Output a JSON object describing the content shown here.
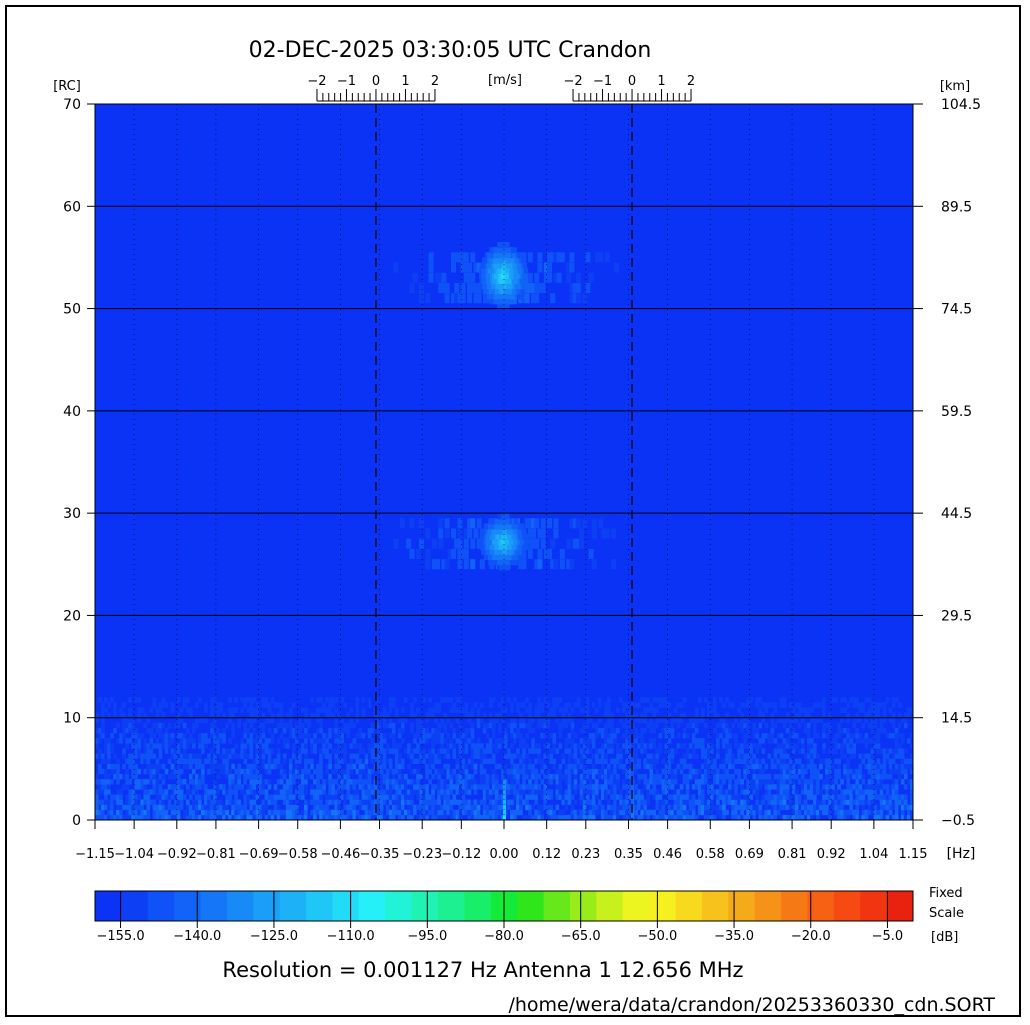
{
  "chart_data": {
    "type": "heatmap",
    "title": "02-DEC-2025 03:30:05 UTC   Crandon",
    "left_axis": {
      "unit_label": "[RC]",
      "ticks": [
        "70",
        "60",
        "50",
        "40",
        "30",
        "20",
        "10",
        "0"
      ],
      "range": [
        0,
        70
      ]
    },
    "right_axis": {
      "unit_label": "[km]",
      "ticks": [
        "104.5",
        "89.5",
        "74.5",
        "59.5",
        "44.5",
        "29.5",
        "14.5",
        "-0.5"
      ],
      "range": [
        -0.5,
        104.5
      ]
    },
    "x_axis": {
      "unit_label": "[Hz]",
      "ticks": [
        "-1.15",
        "-1.04",
        "-0.92",
        "-0.81",
        "-0.69",
        "-0.58",
        "-0.46",
        "-0.35",
        "-0.23",
        "-0.12",
        "0.00",
        "0.12",
        "0.23",
        "0.35",
        "0.46",
        "0.58",
        "0.69",
        "0.81",
        "0.92",
        "1.04",
        "1.15"
      ],
      "range": [
        -1.15,
        1.15
      ]
    },
    "velocity_scales": {
      "unit_label": "[m/s]",
      "ticks": [
        "-2",
        "-1",
        "0",
        "1",
        "2"
      ],
      "centers_hz": [
        -0.36,
        0.36
      ]
    },
    "grid": true,
    "colorbar": {
      "ticks": [
        "-155.0",
        "-140.0",
        "-125.0",
        "-110.0",
        "-95.0",
        "-80.0",
        "-65.0",
        "-50.0",
        "-35.0",
        "-20.0",
        "-5.0"
      ],
      "range_db": [
        -160,
        0
      ],
      "label_lines": [
        "Fixed",
        "Scale",
        "[dB]"
      ],
      "colors": [
        "#0b33f5",
        "#0d40f5",
        "#0f52f7",
        "#1263f7",
        "#1577f7",
        "#188af7",
        "#1a9ef7",
        "#1db2f7",
        "#1fc7f7",
        "#22dbf7",
        "#25f0f7",
        "#22f2d6",
        "#20f2b4",
        "#1df091",
        "#19ee6a",
        "#14ea3a",
        "#2ee61a",
        "#66e81a",
        "#99ec1a",
        "#c8f01c",
        "#ecf51f",
        "#f7f020",
        "#f7da1e",
        "#f7c21c",
        "#f5aa1a",
        "#f59218",
        "#f57a16",
        "#f56214",
        "#f54a12",
        "#f03510",
        "#e8220e"
      ]
    },
    "echoes": [
      {
        "hz": -0.005,
        "rc": 53,
        "peak_db": -110,
        "spread_rc": 6
      },
      {
        "hz": -0.005,
        "rc": 27,
        "peak_db": -112,
        "spread_rc": 5
      }
    ],
    "background_db": -157,
    "noise_floor_rc_max": 10
  },
  "footer": {
    "resolution_line": "Resolution = 0.001127 Hz   Antenna  1   12.656 MHz",
    "file_path": "/home/wera/data/crandon/20253360330_cdn.SORT"
  }
}
